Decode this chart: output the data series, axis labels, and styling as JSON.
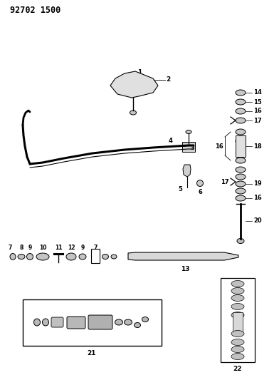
{
  "title": "92702 1500",
  "bg_color": "#ffffff",
  "line_color": "#000000",
  "fig_width": 3.92,
  "fig_height": 5.33,
  "dpi": 100
}
